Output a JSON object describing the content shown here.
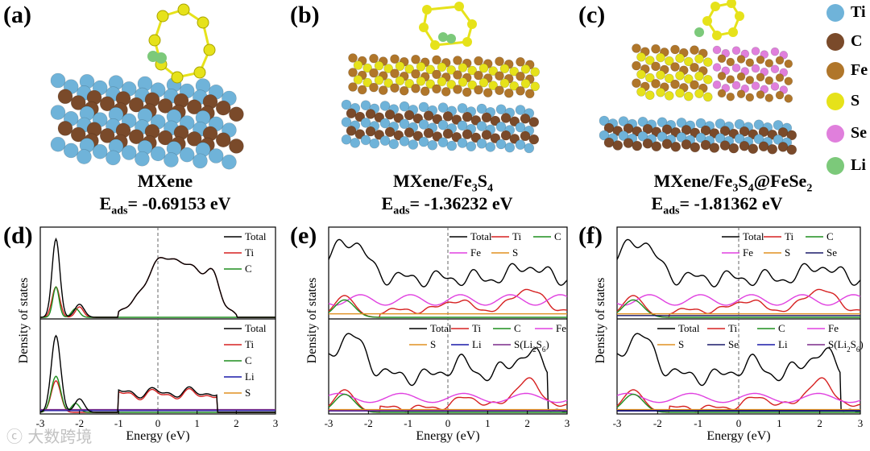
{
  "panels": {
    "a": {
      "letter": "(a)",
      "name": "MXene",
      "energy_label": "E",
      "energy_sub": "ads",
      "energy_value": "= -0.69153 eV"
    },
    "b": {
      "letter": "(b)",
      "name_main": "MXene/Fe",
      "name_parts": [
        "3",
        "S",
        "4"
      ],
      "energy_label": "E",
      "energy_sub": "ads",
      "energy_value": "= -1.36232 eV"
    },
    "c": {
      "letter": "(c)",
      "name_main": "MXene/Fe",
      "name_parts": [
        "3",
        "S",
        "4",
        "@FeSe",
        "2"
      ],
      "energy_label": "E",
      "energy_sub": "ads",
      "energy_value": "= -1.81362 eV"
    },
    "d": {
      "letter": "(d)"
    },
    "e": {
      "letter": "(e)"
    },
    "f": {
      "letter": "(f)"
    }
  },
  "atom_legend": [
    {
      "label": "Ti",
      "color": "#6fb3d9"
    },
    {
      "label": "C",
      "color": "#7a4a2a"
    },
    {
      "label": "Fe",
      "color": "#b0762a"
    },
    {
      "label": "S",
      "color": "#e6e21a"
    },
    {
      "label": "Se",
      "color": "#e07fdc"
    },
    {
      "label": "Li",
      "color": "#7cc97a"
    }
  ],
  "colors": {
    "total": "#000000",
    "ti": "#d62020",
    "c": "#1e8e1e",
    "li": "#1a1aa8",
    "s_li": "#7a2a8a",
    "fe": "#e040e0",
    "s": "#e09020",
    "se": "#1a1a6a"
  },
  "watermark": "大数跨境",
  "chart_data": [
    {
      "type": "line",
      "id": "d",
      "ylabel": "Density of states",
      "xlabel": "Energy (eV)",
      "xlim": [
        -3,
        3
      ],
      "xticks": [
        "-3",
        "-2",
        "-1",
        "0",
        "1",
        "2",
        "3"
      ],
      "top_legend": [
        "Total",
        "Ti",
        "C"
      ],
      "bottom_legend": [
        "Total",
        "Ti",
        "C",
        "Li",
        "S"
      ]
    },
    {
      "type": "line",
      "id": "e",
      "ylabel": "Density of states",
      "xlabel": "Energy (eV)",
      "xlim": [
        -3,
        3
      ],
      "xticks": [
        "-3",
        "-2",
        "-1",
        "0",
        "1",
        "2",
        "3"
      ],
      "top_legend": [
        "Total",
        "Ti",
        "C",
        "Fe",
        "S"
      ],
      "bottom_legend": [
        "Total",
        "Ti",
        "C",
        "Fe",
        "S",
        "Li",
        "S(Li2S6)"
      ]
    },
    {
      "type": "line",
      "id": "f",
      "ylabel": "Density of states",
      "xlabel": "Energy (eV)",
      "xlim": [
        -3,
        3
      ],
      "xticks": [
        "-3",
        "-2",
        "-1",
        "0",
        "1",
        "2",
        "3"
      ],
      "top_legend": [
        "Total",
        "Ti",
        "C",
        "Fe",
        "S",
        "Se"
      ],
      "bottom_legend": [
        "Total",
        "Ti",
        "C",
        "Fe",
        "S",
        "Se",
        "Li",
        "S(Li2S6)"
      ]
    }
  ]
}
